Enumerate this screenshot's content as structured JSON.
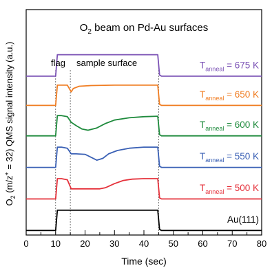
{
  "chart_data": {
    "type": "line",
    "title_main": "O",
    "title_sub": "2",
    "title_rest": " beam on Pd-Au surfaces",
    "xlabel": "Time (sec)",
    "ylabel_main": "O",
    "ylabel_sub": "2",
    "ylabel_rest": " (m/z",
    "ylabel_sup": "+",
    "ylabel_tail": " = 32) QMS signal intensity (a.u.)",
    "xlim": [
      0,
      80
    ],
    "ylim": [
      0,
      1
    ],
    "xticks": [
      "0",
      "10",
      "20",
      "30",
      "40",
      "50",
      "60",
      "70",
      "80"
    ],
    "region_labels": {
      "flag": "flag",
      "sample": "sample surface"
    },
    "markers_x": [
      10,
      15,
      45
    ],
    "series": [
      {
        "name": "Au(111)",
        "label_main": "Au(111)",
        "label_sub": "",
        "label_rest": "",
        "color": "#000000",
        "offset": 0.02,
        "x": [
          0,
          10,
          10.6,
          12,
          15,
          20,
          30,
          40,
          44.7,
          45.3,
          46,
          80
        ],
        "y": [
          0,
          0,
          0.09,
          0.09,
          0.09,
          0.09,
          0.09,
          0.09,
          0.09,
          0.005,
          0,
          0
        ]
      },
      {
        "name": "Tanneal = 500 K",
        "label_main": "T",
        "label_sub": "anneal",
        "label_rest": " = 500 K",
        "color": "#e5303a",
        "offset": 0.16,
        "x": [
          0,
          10,
          10.6,
          12,
          14,
          15.3,
          17,
          25,
          27,
          30,
          33,
          36,
          40,
          44.7,
          45.3,
          46,
          80
        ],
        "y": [
          0,
          0,
          0.09,
          0.09,
          0.085,
          0.045,
          0.045,
          0.045,
          0.05,
          0.068,
          0.082,
          0.088,
          0.09,
          0.09,
          0.005,
          0,
          0
        ]
      },
      {
        "name": "Tanneal = 550 K",
        "label_main": "T",
        "label_sub": "anneal",
        "label_rest": " = 550 K",
        "color": "#3a60b5",
        "offset": 0.3,
        "x": [
          0,
          10,
          10.6,
          12,
          14,
          15.3,
          17,
          20,
          22,
          24,
          26,
          28,
          31,
          35,
          40,
          44.7,
          45.3,
          46,
          80
        ],
        "y": [
          0,
          0,
          0.09,
          0.09,
          0.085,
          0.06,
          0.06,
          0.058,
          0.045,
          0.032,
          0.04,
          0.06,
          0.075,
          0.085,
          0.09,
          0.09,
          0.005,
          0,
          0
        ]
      },
      {
        "name": "Tanneal = 600 K",
        "label_main": "T",
        "label_sub": "anneal",
        "label_rest": " = 600 K",
        "color": "#1e8a3c",
        "offset": 0.44,
        "x": [
          0,
          10,
          10.6,
          12,
          14,
          15.3,
          17,
          19,
          21,
          24,
          27,
          30,
          35,
          40,
          44.7,
          45.3,
          46,
          80
        ],
        "y": [
          0,
          0,
          0.09,
          0.09,
          0.085,
          0.06,
          0.045,
          0.03,
          0.025,
          0.035,
          0.055,
          0.07,
          0.08,
          0.085,
          0.087,
          0.005,
          0,
          0
        ]
      },
      {
        "name": "Tanneal = 650 K",
        "label_main": "T",
        "label_sub": "anneal",
        "label_rest": " = 650 K",
        "color": "#f07d22",
        "offset": 0.575,
        "x": [
          0,
          10,
          10.6,
          12,
          14,
          15.3,
          16,
          18,
          22,
          30,
          40,
          44.7,
          45.3,
          46,
          80
        ],
        "y": [
          0,
          0,
          0.09,
          0.09,
          0.09,
          0.06,
          0.075,
          0.085,
          0.088,
          0.09,
          0.09,
          0.09,
          0.005,
          0,
          0
        ]
      },
      {
        "name": "Tanneal = 675 K",
        "label_main": "T",
        "label_sub": "anneal",
        "label_rest": " = 675 K",
        "color": "#7b52b5",
        "offset": 0.705,
        "x": [
          0,
          10,
          10.6,
          12,
          15,
          20,
          30,
          40,
          44.7,
          45.3,
          46,
          80
        ],
        "y": [
          0,
          0,
          0.095,
          0.095,
          0.095,
          0.095,
          0.095,
          0.095,
          0.095,
          0.005,
          0,
          0
        ]
      }
    ]
  }
}
